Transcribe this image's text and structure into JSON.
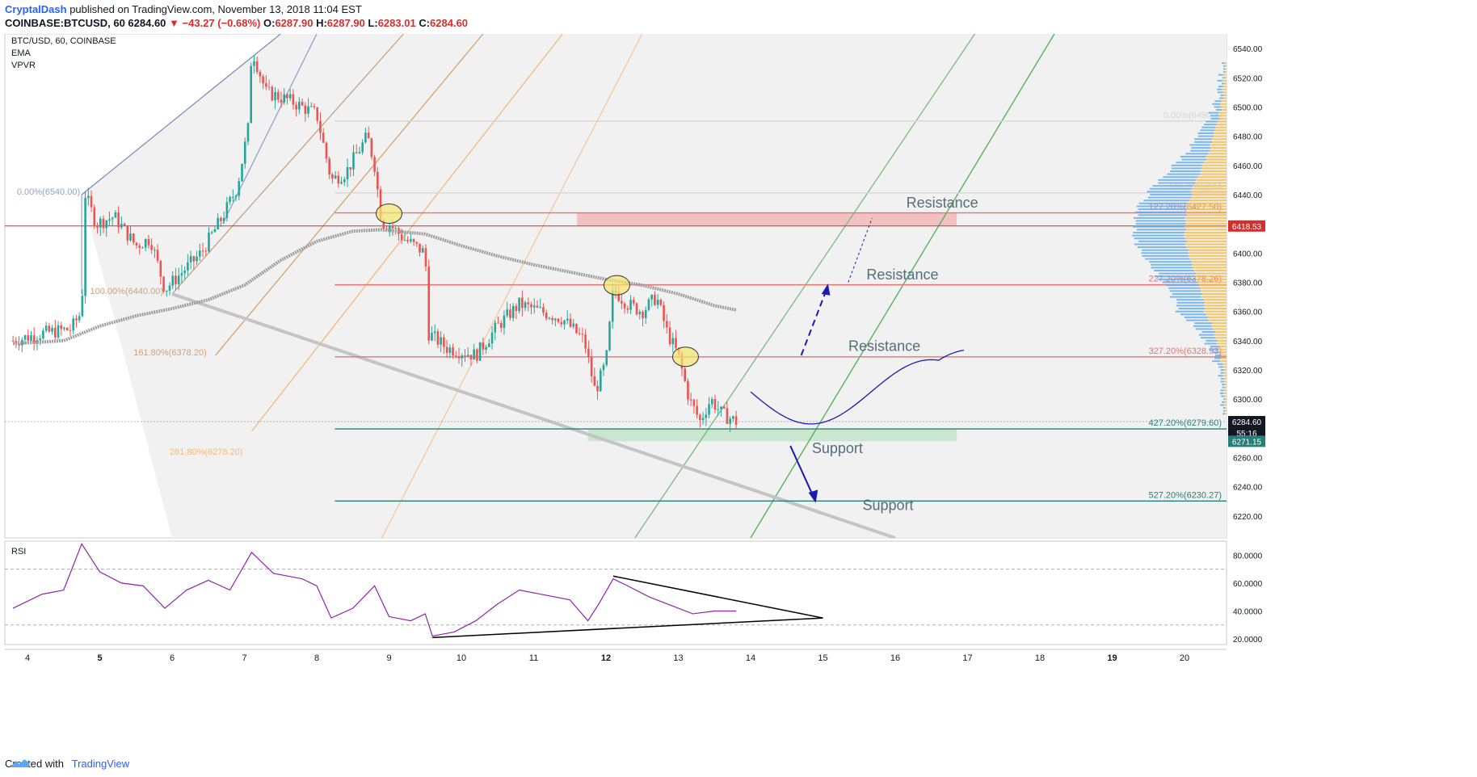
{
  "header": {
    "author": "CryptalDash",
    "published_text": "published on TradingView.com, November 13, 2018 11:04 EST",
    "symbol_line": "COINBASE:BTCUSD, 60",
    "last": "6284.60",
    "change": "▼ −43.27 (−0.68%)",
    "o_label": "O:",
    "o": "6287.90",
    "h_label": "H:",
    "h": "6287.90",
    "l_label": "L:",
    "l": "6283.01",
    "c_label": "C:",
    "c": "6284.60"
  },
  "legend": {
    "symbol": "BTC/USD, 60, COINBASE",
    "ema": "EMA",
    "vpvr": "VPVR",
    "rsi": "RSI"
  },
  "footer": {
    "created_with": "Created with",
    "brand": "TradingView"
  },
  "colors": {
    "up": "#26a69a",
    "down": "#ef5350",
    "ema": "#9e9e9e",
    "rsi": "#8e24aa",
    "resistance_line": "#e57373",
    "support_line": "#26807a",
    "price_tag": "#d32f2f",
    "support_tag": "#26807a",
    "vol_up": "#5aa9f0",
    "vol_down": "#f5b942"
  },
  "chart_data": [
    {
      "type": "candlestick",
      "title": "BTC/USD, 60, COINBASE",
      "ylim": [
        6205,
        6550
      ],
      "x_axis_ticks": [
        "4",
        "5",
        "6",
        "7",
        "8",
        "9",
        "10",
        "11",
        "12",
        "13",
        "14",
        "15",
        "16",
        "17",
        "18",
        "19",
        "20"
      ],
      "y_axis_ticks": [
        6220,
        6240,
        6260,
        6280,
        6300,
        6320,
        6340,
        6360,
        6380,
        6400,
        6420,
        6440,
        6460,
        6480,
        6500,
        6520,
        6540
      ],
      "price_tags": [
        {
          "value": 6418.53,
          "label": "6418.53",
          "kind": "resistance"
        },
        {
          "value": 6284.6,
          "label": "6284.60",
          "kind": "last"
        },
        {
          "value": 6284.6,
          "label": "55:16",
          "kind": "countdown"
        },
        {
          "value": 6271.15,
          "label": "6271.15",
          "kind": "support"
        }
      ],
      "price_path": [
        [
          3.8,
          6340
        ],
        [
          4.2,
          6345
        ],
        [
          4.6,
          6348
        ],
        [
          4.75,
          6360
        ],
        [
          4.8,
          6440
        ],
        [
          4.95,
          6420
        ],
        [
          5.2,
          6425
        ],
        [
          5.5,
          6405
        ],
        [
          5.7,
          6410
        ],
        [
          5.9,
          6375
        ],
        [
          6.1,
          6385
        ],
        [
          6.4,
          6400
        ],
        [
          6.7,
          6425
        ],
        [
          6.9,
          6445
        ],
        [
          7.05,
          6485
        ],
        [
          7.1,
          6540
        ],
        [
          7.3,
          6510
        ],
        [
          7.6,
          6505
        ],
        [
          8.0,
          6495
        ],
        [
          8.2,
          6450
        ],
        [
          8.4,
          6455
        ],
        [
          8.7,
          6480
        ],
        [
          8.8,
          6460
        ],
        [
          8.9,
          6420
        ],
        [
          9.0,
          6420
        ],
        [
          9.2,
          6410
        ],
        [
          9.5,
          6400
        ],
        [
          9.55,
          6345
        ],
        [
          9.8,
          6335
        ],
        [
          10.2,
          6330
        ],
        [
          10.5,
          6350
        ],
        [
          10.8,
          6365
        ],
        [
          11.1,
          6360
        ],
        [
          11.4,
          6355
        ],
        [
          11.7,
          6340
        ],
        [
          11.85,
          6305
        ],
        [
          12.0,
          6325
        ],
        [
          12.1,
          6375
        ],
        [
          12.3,
          6365
        ],
        [
          12.5,
          6360
        ],
        [
          12.7,
          6370
        ],
        [
          12.85,
          6345
        ],
        [
          13.0,
          6330
        ],
        [
          13.15,
          6300
        ],
        [
          13.3,
          6285
        ],
        [
          13.45,
          6300
        ],
        [
          13.6,
          6290
        ],
        [
          13.8,
          6284.6
        ]
      ],
      "ema_path": [
        [
          3.8,
          6338
        ],
        [
          4.5,
          6340
        ],
        [
          5.0,
          6350
        ],
        [
          5.5,
          6357
        ],
        [
          6.0,
          6362
        ],
        [
          6.5,
          6368
        ],
        [
          7.0,
          6378
        ],
        [
          7.5,
          6395
        ],
        [
          8.0,
          6408
        ],
        [
          8.5,
          6415
        ],
        [
          8.9,
          6416
        ],
        [
          9.5,
          6413
        ],
        [
          10.0,
          6405
        ],
        [
          10.5,
          6398
        ],
        [
          11.0,
          6392
        ],
        [
          11.5,
          6387
        ],
        [
          12.0,
          6382
        ],
        [
          12.5,
          6378
        ],
        [
          13.0,
          6372
        ],
        [
          13.5,
          6364
        ],
        [
          13.8,
          6361
        ]
      ],
      "levels": [
        {
          "label": "127.20%(6427.50)",
          "value": 6427.5,
          "kind": "resistance"
        },
        {
          "label": "227.20%(6378.26)",
          "value": 6378.26,
          "kind": "resistance"
        },
        {
          "label": "327.20%(6328.93)",
          "value": 6328.93,
          "kind": "resistance"
        },
        {
          "label": "427.20%(6279.60)",
          "value": 6279.6,
          "kind": "support"
        },
        {
          "label": "527.20%(6230.27)",
          "value": 6230.27,
          "kind": "support"
        },
        {
          "label": "0.00%(6490.3)",
          "value": 6490.3,
          "kind": "neutral"
        },
        {
          "label": "100.00%(644",
          "value": 6441.2,
          "kind": "neutral"
        }
      ],
      "left_fib_labels": [
        {
          "label": "0.00%(6540.00)",
          "value": 6440
        },
        {
          "label": "100.00%(6440.00)",
          "value": 6372
        },
        {
          "label": "161.80%(6378.20)",
          "value": 6330
        },
        {
          "label": "261.80%(6278.20)",
          "value": 6262
        }
      ],
      "zones": [
        {
          "name": "resistance-zone",
          "from": 6418.53,
          "to": 6427.5,
          "x_from": 11.6,
          "x_to": 16.85
        },
        {
          "name": "support-zone",
          "from": 6271.15,
          "to": 6279.6,
          "x_from": 11.75,
          "x_to": 16.85
        }
      ],
      "annotations": [
        {
          "text": "Resistance",
          "x": 16.65,
          "y": 6431
        },
        {
          "text": "Resistance",
          "x": 16.1,
          "y": 6382
        },
        {
          "text": "Resistance",
          "x": 15.85,
          "y": 6333
        },
        {
          "text": "Support",
          "x": 15.2,
          "y": 6263
        },
        {
          "text": "Support",
          "x": 15.9,
          "y": 6224
        }
      ]
    },
    {
      "type": "line",
      "title": "RSI",
      "ylim": [
        16,
        90
      ],
      "y_axis_ticks": [
        20,
        40,
        60,
        80
      ],
      "y_tick_labels": [
        "20.0000",
        "40.0000",
        "60.0000",
        "80.0000"
      ],
      "bands": [
        30,
        70
      ],
      "rsi_path": [
        [
          3.8,
          42
        ],
        [
          4.2,
          52
        ],
        [
          4.5,
          55
        ],
        [
          4.75,
          88
        ],
        [
          5.0,
          68
        ],
        [
          5.3,
          60
        ],
        [
          5.6,
          58
        ],
        [
          5.9,
          42
        ],
        [
          6.2,
          55
        ],
        [
          6.5,
          62
        ],
        [
          6.8,
          55
        ],
        [
          7.1,
          82
        ],
        [
          7.4,
          67
        ],
        [
          7.8,
          63
        ],
        [
          8.0,
          58
        ],
        [
          8.2,
          35
        ],
        [
          8.5,
          42
        ],
        [
          8.8,
          58
        ],
        [
          9.0,
          36
        ],
        [
          9.3,
          33
        ],
        [
          9.5,
          38
        ],
        [
          9.6,
          22
        ],
        [
          9.9,
          25
        ],
        [
          10.2,
          33
        ],
        [
          10.5,
          45
        ],
        [
          10.8,
          55
        ],
        [
          11.2,
          51
        ],
        [
          11.5,
          48
        ],
        [
          11.75,
          33
        ],
        [
          11.9,
          45
        ],
        [
          12.1,
          63
        ],
        [
          12.3,
          58
        ],
        [
          12.6,
          50
        ],
        [
          12.9,
          44
        ],
        [
          13.2,
          38
        ],
        [
          13.5,
          40
        ],
        [
          13.8,
          40
        ]
      ],
      "triangle": [
        [
          12.1,
          65
        ],
        [
          15.0,
          35
        ],
        [
          9.6,
          21
        ]
      ]
    }
  ]
}
